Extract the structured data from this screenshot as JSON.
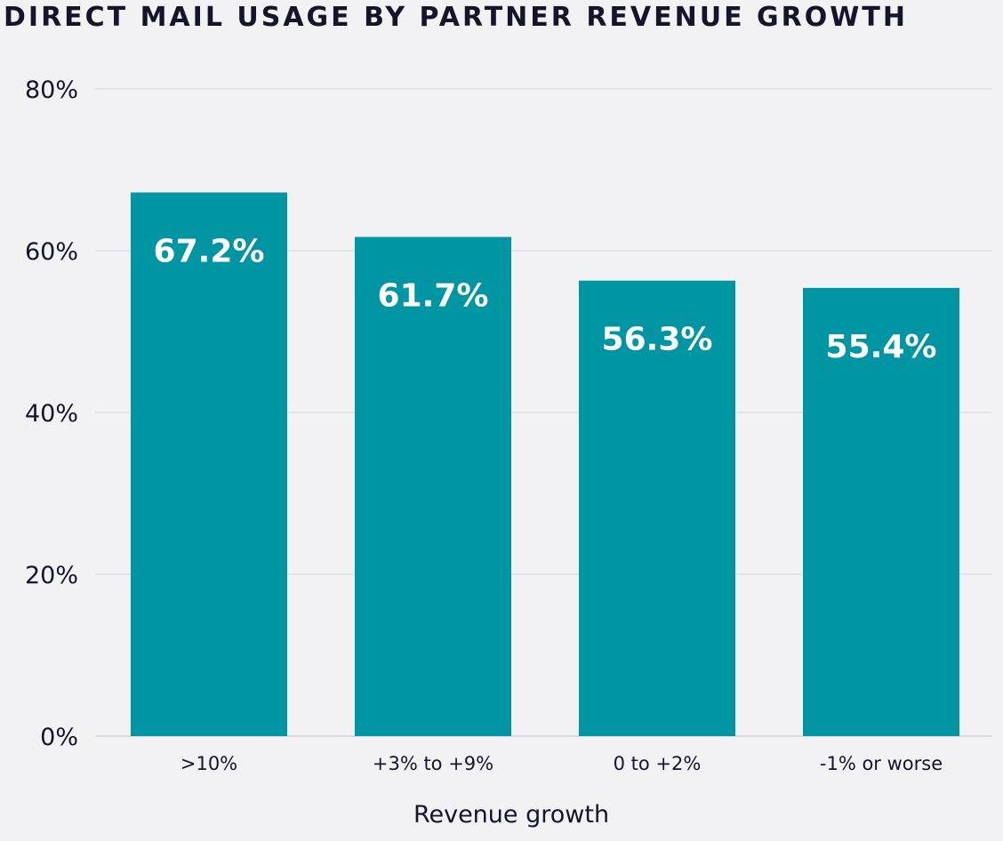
{
  "chart_data": {
    "type": "bar",
    "title": "DIRECT MAIL USAGE BY PARTNER REVENUE GROWTH",
    "xlabel": "Revenue growth",
    "ylabel": "",
    "categories": [
      ">10%",
      "+3% to +9%",
      "0 to +2%",
      "-1% or worse"
    ],
    "values": [
      67.2,
      61.7,
      56.3,
      55.4
    ],
    "data_labels": [
      "67.2%",
      "61.7%",
      "56.3%",
      "55.4%"
    ],
    "ylim": [
      0,
      80
    ],
    "yticks": [
      0,
      20,
      40,
      60,
      80
    ],
    "ytick_labels": [
      "0%",
      "20%",
      "40%",
      "60%",
      "80%"
    ],
    "grid": true,
    "colors": {
      "bar": "#0095a3",
      "background": "#f2f2f5",
      "grid": "#e4e4e8",
      "text": "#15142a"
    }
  }
}
